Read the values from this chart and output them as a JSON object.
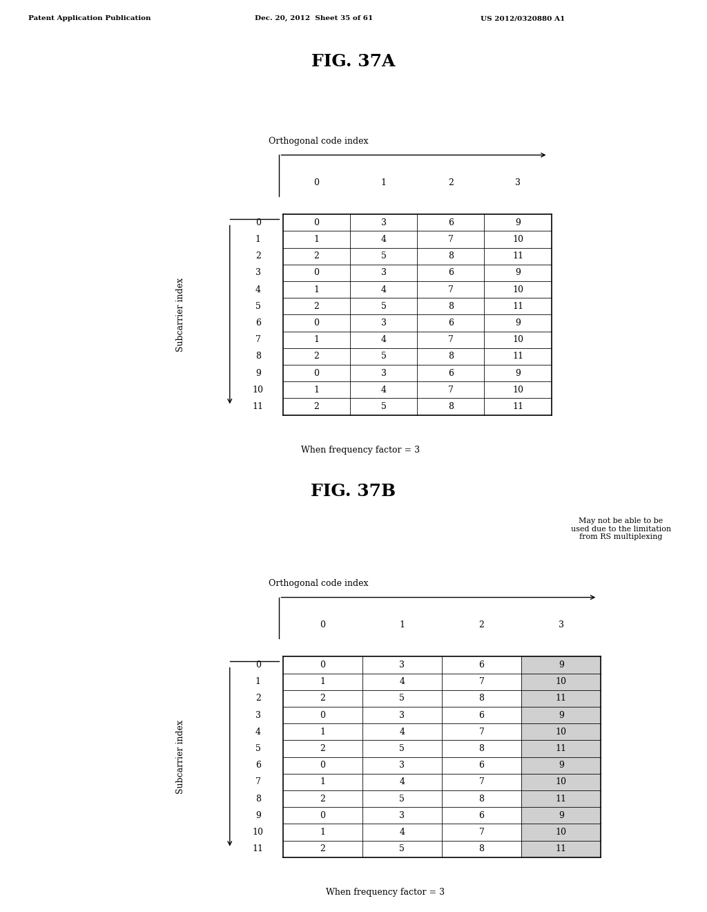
{
  "title_a": "FIG. 37A",
  "title_b": "FIG. 37B",
  "header_text": "Patent Application Publication",
  "header_date": "Dec. 20, 2012  Sheet 35 of 61",
  "header_patent": "US 2012/0320880 A1",
  "table_a": {
    "col_headers": [
      "0",
      "1",
      "2",
      "3"
    ],
    "row_headers": [
      "0",
      "1",
      "2",
      "3",
      "4",
      "5",
      "6",
      "7",
      "8",
      "9",
      "10",
      "11"
    ],
    "data": [
      [
        "0",
        "3",
        "6",
        "9"
      ],
      [
        "1",
        "4",
        "7",
        "10"
      ],
      [
        "2",
        "5",
        "8",
        "11"
      ],
      [
        "0",
        "3",
        "6",
        "9"
      ],
      [
        "1",
        "4",
        "7",
        "10"
      ],
      [
        "2",
        "5",
        "8",
        "11"
      ],
      [
        "0",
        "3",
        "6",
        "9"
      ],
      [
        "1",
        "4",
        "7",
        "10"
      ],
      [
        "2",
        "5",
        "8",
        "11"
      ],
      [
        "0",
        "3",
        "6",
        "9"
      ],
      [
        "1",
        "4",
        "7",
        "10"
      ],
      [
        "2",
        "5",
        "8",
        "11"
      ]
    ],
    "caption": "When frequency factor = 3",
    "x_label": "Orthogonal code index",
    "y_label": "Subcarrier index"
  },
  "table_b": {
    "col_headers": [
      "0",
      "1",
      "2",
      "3"
    ],
    "row_headers": [
      "0",
      "1",
      "2",
      "3",
      "4",
      "5",
      "6",
      "7",
      "8",
      "9",
      "10",
      "11"
    ],
    "data": [
      [
        "0",
        "3",
        "6",
        "9"
      ],
      [
        "1",
        "4",
        "7",
        "10"
      ],
      [
        "2",
        "5",
        "8",
        "11"
      ],
      [
        "0",
        "3",
        "6",
        "9"
      ],
      [
        "1",
        "4",
        "7",
        "10"
      ],
      [
        "2",
        "5",
        "8",
        "11"
      ],
      [
        "0",
        "3",
        "6",
        "9"
      ],
      [
        "1",
        "4",
        "7",
        "10"
      ],
      [
        "2",
        "5",
        "8",
        "11"
      ],
      [
        "0",
        "3",
        "6",
        "9"
      ],
      [
        "1",
        "4",
        "7",
        "10"
      ],
      [
        "2",
        "5",
        "8",
        "11"
      ]
    ],
    "caption": "When frequency factor = 3",
    "x_label": "Orthogonal code index",
    "y_label": "Subcarrier index",
    "shaded_col": 3,
    "shaded_color": "#d0d0d0",
    "annotation": "May not be able to be\nused due to the limitation\nfrom RS multiplexing"
  },
  "bg_color": "#ffffff",
  "text_color": "#000000"
}
